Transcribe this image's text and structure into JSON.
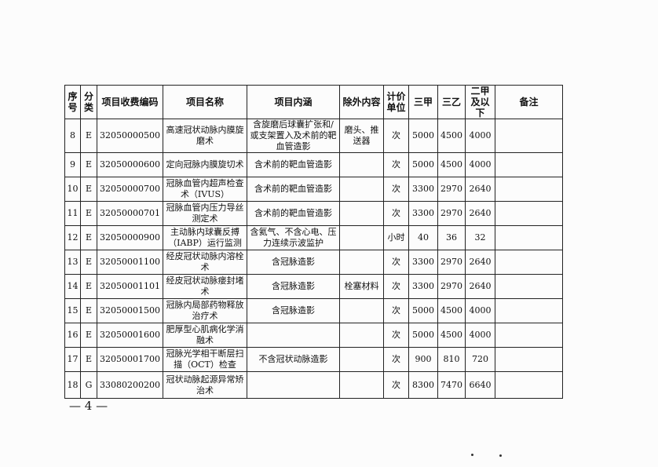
{
  "table": {
    "headers": [
      "序号",
      "分类",
      "项目收费编码",
      "项目名称",
      "项目内涵",
      "除外内容",
      "计价单位",
      "三甲",
      "三乙",
      "二甲及以下",
      "备注"
    ],
    "rows": [
      [
        "8",
        "E",
        "32050000500",
        "高速冠状动脉内膜旋磨术",
        "含旋磨后球囊扩张和/或支架置入及术前的靶血管造影",
        "磨头、推送器",
        "次",
        "5000",
        "4500",
        "4000",
        ""
      ],
      [
        "9",
        "E",
        "32050000600",
        "定向冠脉内膜旋切术",
        "含术前的靶血管造影",
        "",
        "次",
        "5000",
        "4500",
        "4000",
        ""
      ],
      [
        "10",
        "E",
        "32050000700",
        "冠脉血管内超声检查术（IVUS）",
        "含术前的靶血管造影",
        "",
        "次",
        "3300",
        "2970",
        "2640",
        ""
      ],
      [
        "11",
        "E",
        "32050000701",
        "冠脉血管内压力导丝测定术",
        "含术前的靶血管造影",
        "",
        "次",
        "3300",
        "2970",
        "2640",
        ""
      ],
      [
        "12",
        "E",
        "32050000900",
        "主动脉内球囊反搏（IABP）运行监测",
        "含氦气、不含心电、压力连续示波监护",
        "",
        "小时",
        "40",
        "36",
        "32",
        ""
      ],
      [
        "13",
        "E",
        "32050001100",
        "经皮冠状动脉内溶栓术",
        "含冠脉造影",
        "",
        "次",
        "3300",
        "2970",
        "2640",
        ""
      ],
      [
        "14",
        "E",
        "32050001101",
        "经皮冠状动脉瘘封堵术",
        "含冠脉造影",
        "栓塞材料",
        "次",
        "3300",
        "2970",
        "2640",
        ""
      ],
      [
        "15",
        "E",
        "32050001500",
        "冠脉内局部药物释放治疗术",
        "含冠脉造影",
        "",
        "次",
        "5000",
        "4500",
        "4000",
        ""
      ],
      [
        "16",
        "E",
        "32050001600",
        "肥厚型心肌病化学消融术",
        "",
        "",
        "次",
        "5000",
        "4500",
        "4000",
        ""
      ],
      [
        "17",
        "E",
        "32050001700",
        "冠脉光学相干断层扫描（OCT）检查",
        "不含冠状动脉造影",
        "",
        "次",
        "900",
        "810",
        "720",
        ""
      ],
      [
        "18",
        "G",
        "33080200200",
        "冠状动脉起源异常矫治术",
        "",
        "",
        "次",
        "8300",
        "7470",
        "6640",
        ""
      ]
    ]
  },
  "footer": {
    "page": "— 4 —"
  }
}
